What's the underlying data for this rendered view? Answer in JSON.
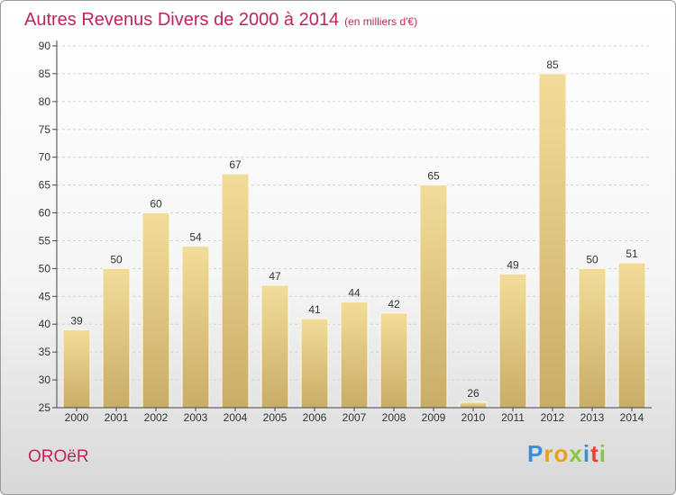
{
  "title": "Autres Revenus Divers de 2000 à 2014",
  "subtitle": "(en milliers d'€)",
  "commune": "OROëR",
  "logo": {
    "letters": [
      {
        "ch": "P",
        "color": "#3a8fd6"
      },
      {
        "ch": "r",
        "color": "#e8a21a"
      },
      {
        "ch": "o",
        "color": "#e8a21a"
      },
      {
        "ch": "x",
        "color": "#8cc63f"
      },
      {
        "ch": "i",
        "color": "#3a8fd6"
      },
      {
        "ch": "t",
        "color": "#e8442e"
      },
      {
        "ch": "i",
        "color": "#8cc63f"
      }
    ]
  },
  "colors": {
    "title": "#c0245c",
    "bar_top": "#f3dc9a",
    "bar_bottom": "#c9ad67",
    "axis": "#444444",
    "grid": "#d4d4d4"
  },
  "chart_data": {
    "type": "bar",
    "title": "Autres Revenus Divers de 2000 à 2014",
    "subtitle": "(en milliers d'€)",
    "xlabel": "",
    "ylabel": "",
    "categories": [
      "2000",
      "2001",
      "2002",
      "2003",
      "2004",
      "2005",
      "2006",
      "2007",
      "2008",
      "2009",
      "2010",
      "2011",
      "2012",
      "2013",
      "2014"
    ],
    "values": [
      39,
      50,
      60,
      54,
      67,
      47,
      41,
      44,
      42,
      65,
      26,
      49,
      85,
      50,
      51
    ],
    "data_labels": [
      "39",
      "50",
      "60",
      "54",
      "67",
      "47",
      "41",
      "44",
      "42",
      "65",
      "26",
      "49",
      "85",
      "50",
      "51"
    ],
    "ylim": [
      25,
      90
    ],
    "yticks": [
      25,
      30,
      35,
      40,
      45,
      50,
      55,
      60,
      65,
      70,
      75,
      80,
      85,
      90
    ],
    "grid": true
  }
}
